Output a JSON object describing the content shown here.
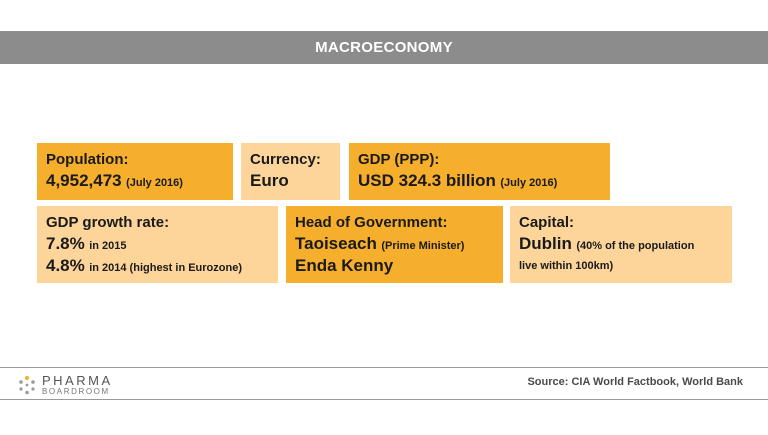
{
  "header": {
    "title": "MACROECONOMY"
  },
  "cards": {
    "population": {
      "label": "Population:",
      "value": "4,952,473",
      "note": "(July 2016)"
    },
    "currency": {
      "label": "Currency:",
      "value": "Euro"
    },
    "gdp": {
      "label": "GDP (PPP):",
      "value": "USD 324.3 billion",
      "note": "(July 2016)"
    },
    "growth": {
      "label": "GDP growth rate:",
      "value1": "7.8%",
      "note1": "in 2015",
      "value2": "4.8%",
      "note2": "in 2014 (highest in Eurozone)"
    },
    "head_of_government": {
      "label": "Head of Government:",
      "title": "Taoiseach",
      "title_note": "(Prime Minister)",
      "name": "Enda Kenny"
    },
    "capital": {
      "label": "Capital:",
      "value": "Dublin",
      "note1": "(40% of the population",
      "note2": "live within 100km)"
    }
  },
  "footer": {
    "logo_top": "PHARMA",
    "logo_bottom": "BOARDROOM",
    "source": "Source: CIA World Factbook, World Bank"
  },
  "colors": {
    "header": "#8c8c8c",
    "card_dark": "#f6ae2d",
    "card_light": "#fdd59a"
  }
}
